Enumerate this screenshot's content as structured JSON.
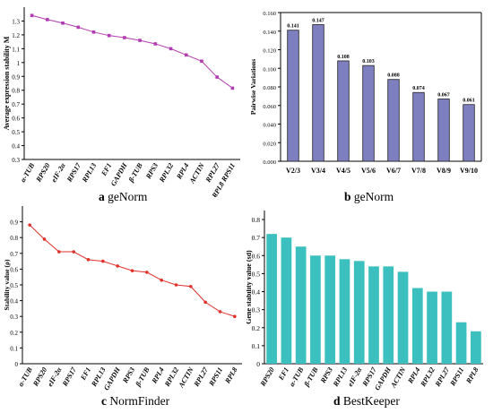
{
  "panels": [
    {
      "letter": "a",
      "name": "geNorm"
    },
    {
      "letter": "b",
      "name": "geNorm"
    },
    {
      "letter": "c",
      "name": "NormFinder"
    },
    {
      "letter": "d",
      "name": "BestKeeper"
    }
  ],
  "chart_data": [
    {
      "type": "line",
      "ylabel": "Average expression stability M",
      "categories": [
        "α-TUB",
        "RPS20",
        "eIF-2α",
        "RPS17",
        "RPL13",
        "EF1",
        "GAPDH",
        "β-TUB",
        "RPS3",
        "RPL32",
        "RPL4",
        "ACTIN",
        "RPL27",
        "RPL8 RPS11"
      ],
      "values": [
        1.34,
        1.31,
        1.285,
        1.255,
        1.22,
        1.195,
        1.18,
        1.16,
        1.135,
        1.1,
        1.055,
        1.01,
        0.895,
        0.815
      ],
      "ylim": [
        0.3,
        1.4
      ],
      "color": "#b23cb2"
    },
    {
      "type": "bar",
      "ylabel": "Pairwise Variations",
      "categories": [
        "V2/3",
        "V3/4",
        "V4/5",
        "V5/6",
        "V6/7",
        "V7/8",
        "V8/9",
        "V9/10"
      ],
      "values": [
        0.141,
        0.147,
        0.108,
        0.103,
        0.088,
        0.074,
        0.067,
        0.061
      ],
      "labels": [
        "0.141",
        "0.147",
        "0.108",
        "0.103",
        "0.088",
        "0.074",
        "0.067",
        "0.061"
      ],
      "ylim": [
        0,
        0.16
      ],
      "yticks": [
        "0.000",
        "0.020",
        "0.040",
        "0.060",
        "0.080",
        "0.100",
        "0.120",
        "0.140",
        "0.160"
      ],
      "color": "#7d7fbf"
    },
    {
      "type": "line",
      "ylabel": "Stability value (ρ)",
      "categories": [
        "α-TUB",
        "RPS20",
        "eIF-2α",
        "RPS17",
        "EF1",
        "RPL13",
        "GAPDH",
        "RPS3",
        "β-TUB",
        "RPL4",
        "RPL32",
        "ACTIN",
        "RPL27",
        "RPS11",
        "RPL8"
      ],
      "values": [
        0.88,
        0.79,
        0.71,
        0.71,
        0.66,
        0.65,
        0.62,
        0.59,
        0.58,
        0.53,
        0.5,
        0.49,
        0.39,
        0.33,
        0.3
      ],
      "ylim": [
        0,
        1
      ],
      "yticks": [
        "0",
        "0.1",
        "0.2",
        "0.3",
        "0.4",
        "0.5",
        "0.6",
        "0.7",
        "0.8",
        "0.9"
      ],
      "color": "#e0302a"
    },
    {
      "type": "bar",
      "ylabel": "Gene stability value (sd)",
      "categories": [
        "RPS20",
        "EF1",
        "α-TUB",
        "β-TUB",
        "RPS3",
        "RPL13",
        "eIF-2α",
        "RPS17",
        "GAPDH",
        "ACTIN",
        "RPL4",
        "RPL32",
        "RPL27",
        "RPS11",
        "RPL8"
      ],
      "values": [
        0.72,
        0.7,
        0.65,
        0.6,
        0.6,
        0.58,
        0.57,
        0.54,
        0.54,
        0.51,
        0.42,
        0.4,
        0.4,
        0.23,
        0.18
      ],
      "ylim": [
        0,
        0.85
      ],
      "yticks": [
        "0",
        "0.1",
        "0.2",
        "0.3",
        "0.4",
        "0.5",
        "0.6",
        "0.7",
        "0.8"
      ],
      "color": "#3bbfbf"
    }
  ]
}
